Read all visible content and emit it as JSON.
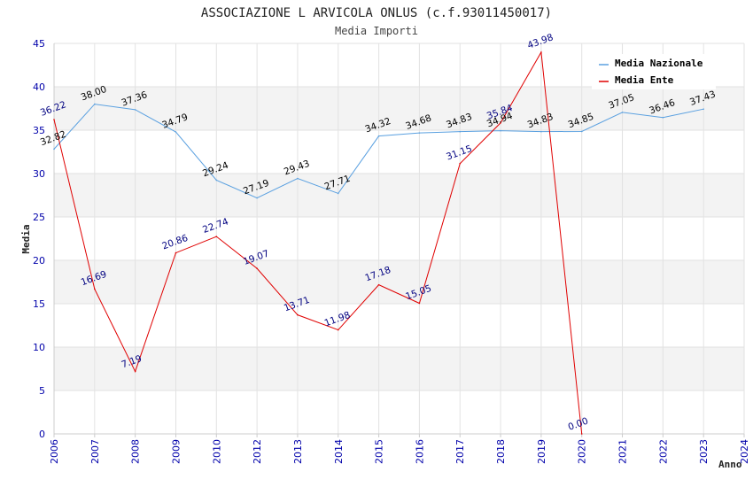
{
  "chart_data": {
    "type": "line",
    "title": "ASSOCIAZIONE L ARVICOLA ONLUS (c.f.93011450017)",
    "subtitle": "Media Importi",
    "xlabel": "Anno",
    "ylabel": "Media",
    "ylim": [
      0,
      45
    ],
    "yticks": [
      "0",
      "5",
      "10",
      "15",
      "20",
      "25",
      "30",
      "35",
      "40",
      "45"
    ],
    "categories": [
      "2006",
      "2007",
      "2008",
      "2009",
      "2010",
      "2012",
      "2013",
      "2014",
      "2015",
      "2016",
      "2017",
      "2018",
      "2019",
      "2020",
      "2021",
      "2022",
      "2023",
      "2024"
    ],
    "legend_position": "top-right",
    "series": [
      {
        "name": "Media Nazionale",
        "color": "#5aa0e0",
        "label_color": "#000000",
        "values": [
          32.82,
          38.0,
          37.36,
          34.79,
          29.24,
          27.19,
          29.43,
          27.71,
          34.32,
          34.68,
          34.83,
          34.94,
          34.83,
          34.85,
          37.05,
          36.46,
          37.43,
          null
        ],
        "labels": [
          "32.82",
          "38.00",
          "37.36",
          "34.79",
          "29.24",
          "27.19",
          "29.43",
          "27.71",
          "34.32",
          "34.68",
          "34.83",
          "34.94",
          "34.83",
          "34.85",
          "37.05",
          "36.46",
          "37.43",
          null
        ]
      },
      {
        "name": "Media Ente",
        "color": "#e00000",
        "label_color": "#000080",
        "values": [
          36.22,
          16.69,
          7.19,
          20.86,
          22.74,
          19.07,
          13.71,
          11.98,
          17.18,
          15.05,
          31.15,
          35.84,
          43.98,
          0.0,
          null,
          null,
          null,
          null
        ],
        "labels": [
          "36.22",
          "16.69",
          "7.19",
          "20.86",
          "22.74",
          "19.07",
          "13.71",
          "11.98",
          "17.18",
          "15.05",
          "31.15",
          "35.84",
          "43.98",
          "0.00",
          null,
          null,
          null,
          null
        ]
      }
    ]
  }
}
